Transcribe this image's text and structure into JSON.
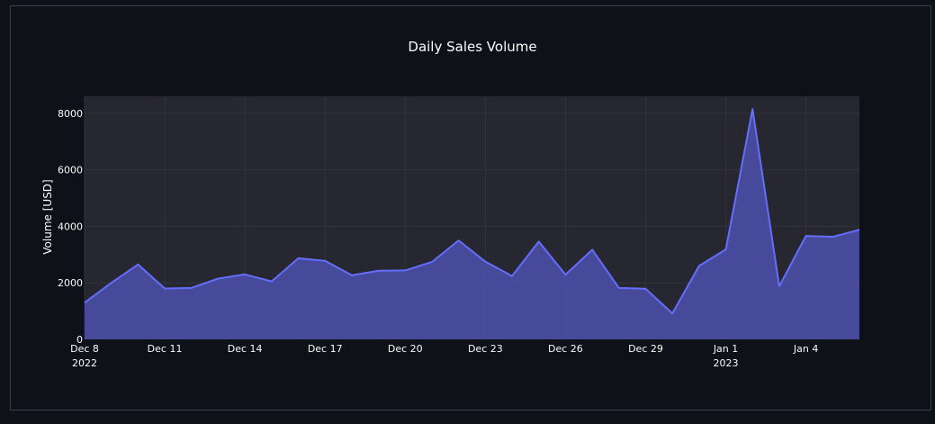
{
  "chart_data": {
    "type": "area",
    "title": "Daily Sales Volume",
    "xlabel": "",
    "ylabel": "Volume [USD]",
    "ylim": [
      0,
      8600
    ],
    "yticks": [
      0,
      2000,
      4000,
      6000,
      8000
    ],
    "x_start": "2022-12-08",
    "x_end": "2023-01-06",
    "xticks": [
      {
        "label": "Dec 8",
        "sublabel": "2022",
        "date": "2022-12-08"
      },
      {
        "label": "Dec 11",
        "date": "2022-12-11"
      },
      {
        "label": "Dec 14",
        "date": "2022-12-14"
      },
      {
        "label": "Dec 17",
        "date": "2022-12-17"
      },
      {
        "label": "Dec 20",
        "date": "2022-12-20"
      },
      {
        "label": "Dec 23",
        "date": "2022-12-23"
      },
      {
        "label": "Dec 26",
        "date": "2022-12-26"
      },
      {
        "label": "Dec 29",
        "date": "2022-12-29"
      },
      {
        "label": "Jan 1",
        "sublabel": "2023",
        "date": "2023-01-01"
      },
      {
        "label": "Jan 4",
        "date": "2023-01-04"
      }
    ],
    "grid": true,
    "colors": {
      "line": "#636efa",
      "fill": "#4b4fa6",
      "plot_bg": "#262730",
      "page_bg": "#0e1117"
    },
    "series": [
      {
        "x": [
          "2022-12-08",
          "2022-12-09",
          "2022-12-10",
          "2022-12-11",
          "2022-12-12",
          "2022-12-13",
          "2022-12-14",
          "2022-12-15",
          "2022-12-16",
          "2022-12-17",
          "2022-12-18",
          "2022-12-19",
          "2022-12-20",
          "2022-12-21",
          "2022-12-22",
          "2022-12-23",
          "2022-12-24",
          "2022-12-25",
          "2022-12-26",
          "2022-12-27",
          "2022-12-28",
          "2022-12-29",
          "2022-12-30",
          "2022-12-31",
          "2023-01-01",
          "2023-01-02",
          "2023-01-03",
          "2023-01-04",
          "2023-01-05",
          "2023-01-06"
        ],
        "values": [
          1300,
          2000,
          2650,
          1800,
          1820,
          2150,
          2300,
          2050,
          2870,
          2780,
          2270,
          2430,
          2440,
          2740,
          3500,
          2750,
          2240,
          3460,
          2290,
          3170,
          1820,
          1790,
          920,
          2600,
          3180,
          8150,
          1880,
          3660,
          3630,
          3880
        ]
      }
    ]
  }
}
